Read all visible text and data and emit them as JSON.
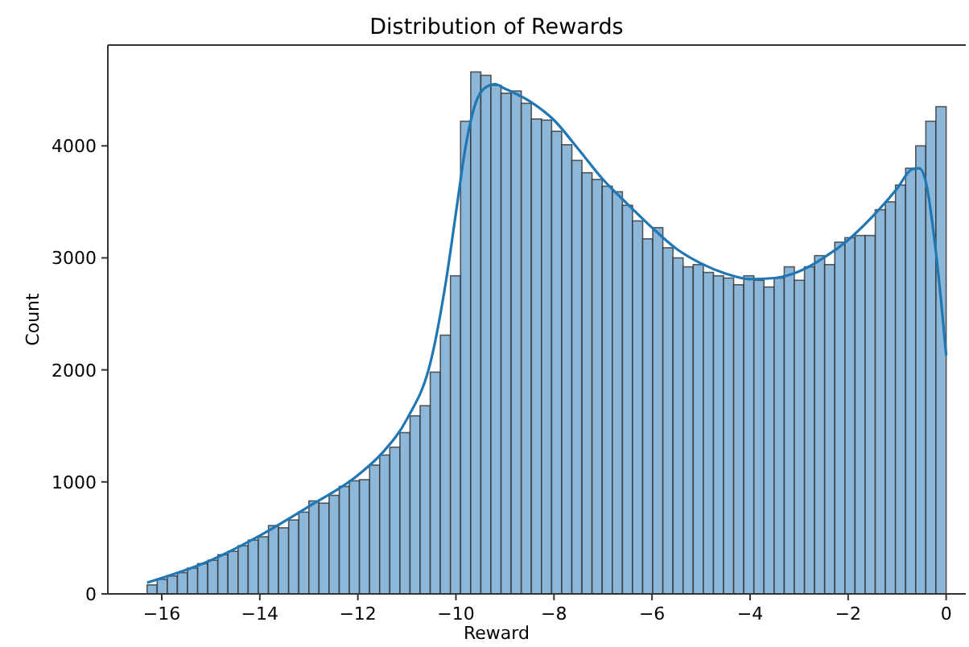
{
  "chart_data": {
    "type": "histogram",
    "title": "Distribution of Rewards",
    "xlabel": "Reward",
    "ylabel": "Count",
    "bins": [
      -16.3,
      -16.094,
      -15.887,
      -15.681,
      -15.475,
      -15.268,
      -15.062,
      -14.856,
      -14.65,
      -14.443,
      -14.237,
      -14.031,
      -13.824,
      -13.618,
      -13.412,
      -13.205,
      -12.999,
      -12.793,
      -12.587,
      -12.38,
      -12.174,
      -11.968,
      -11.761,
      -11.555,
      -11.349,
      -11.142,
      -10.936,
      -10.73,
      -10.524,
      -10.317,
      -10.111,
      -9.905,
      -9.698,
      -9.492,
      -9.286,
      -9.079,
      -8.873,
      -8.667,
      -8.461,
      -8.254,
      -8.048,
      -7.842,
      -7.635,
      -7.429,
      -7.223,
      -7.016,
      -6.81,
      -6.604,
      -6.398,
      -6.191,
      -5.985,
      -5.779,
      -5.572,
      -5.366,
      -5.16,
      -4.953,
      -4.747,
      -4.541,
      -4.335,
      -4.128,
      -3.922,
      -3.716,
      -3.509,
      -3.303,
      -3.097,
      -2.89,
      -2.684,
      -2.478,
      -2.272,
      -2.065,
      -1.859,
      -1.653,
      -1.446,
      -1.24,
      -1.034,
      -0.827,
      -0.621,
      -0.415,
      -0.209,
      0
    ],
    "series": [
      {
        "color": "#8cb7d9",
        "values": [
          80,
          130,
          160,
          190,
          230,
          270,
          300,
          350,
          380,
          430,
          480,
          510,
          610,
          590,
          660,
          730,
          830,
          810,
          880,
          960,
          1010,
          1020,
          1150,
          1240,
          1310,
          1440,
          1590,
          1680,
          1980,
          2310,
          2840,
          4220,
          4660,
          4630,
          4540,
          4470,
          4490,
          4380,
          4240,
          4230,
          4130,
          4010,
          3870,
          3760,
          3700,
          3640,
          3590,
          3470,
          3330,
          3170,
          3270,
          3090,
          3000,
          2920,
          2940,
          2870,
          2840,
          2820,
          2760,
          2840,
          2800,
          2740,
          2820,
          2920,
          2800,
          2920,
          3020,
          2940,
          3140,
          3180,
          3200,
          3200,
          3430,
          3500,
          3650,
          3800,
          4000,
          4220,
          4350
        ]
      },
      {
        "type": "line",
        "color": "#1f77b4",
        "x": [
          -16.3,
          -15,
          -14,
          -13,
          -12,
          -11.5,
          -11,
          -10.5,
          -10.2,
          -10,
          -9.8,
          -9.6,
          -9.4,
          -9.2,
          -9,
          -8.5,
          -8,
          -7.5,
          -7,
          -6.5,
          -6,
          -5.5,
          -5,
          -4.5,
          -4,
          -3.5,
          -3,
          -2.5,
          -2,
          -1.5,
          -1,
          -0.7,
          -0.55,
          -0.4,
          -0.25,
          -0.1,
          0
        ],
        "values": [
          100,
          300,
          520,
          780,
          1060,
          1260,
          1560,
          2100,
          2800,
          3400,
          4000,
          4380,
          4520,
          4550,
          4510,
          4400,
          4230,
          3970,
          3700,
          3480,
          3270,
          3080,
          2950,
          2860,
          2810,
          2820,
          2880,
          3000,
          3160,
          3370,
          3620,
          3790,
          3800,
          3650,
          3200,
          2600,
          2130
        ]
      }
    ],
    "xlim": [
      -17.1,
      0.4
    ],
    "xticks": [
      -16,
      -14,
      -12,
      -10,
      -8,
      -6,
      -4,
      -2,
      0
    ],
    "ylim": [
      0,
      4900
    ],
    "yticks": [
      0,
      1000,
      2000,
      3000,
      4000
    ]
  }
}
